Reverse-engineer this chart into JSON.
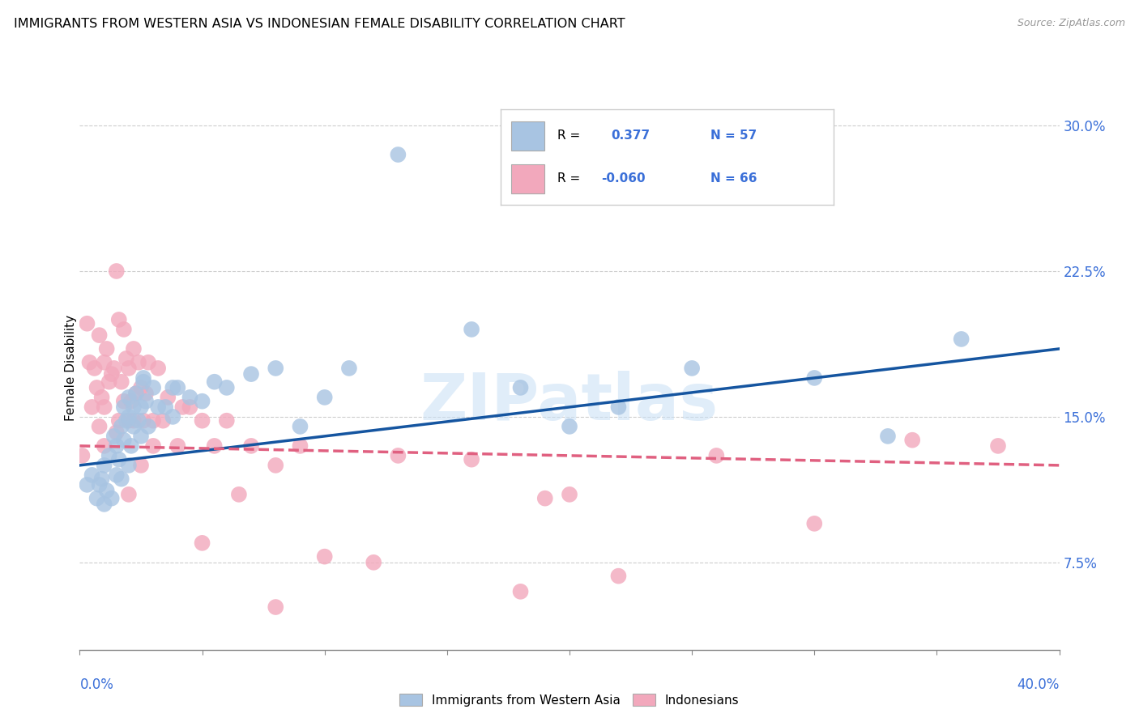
{
  "title": "IMMIGRANTS FROM WESTERN ASIA VS INDONESIAN FEMALE DISABILITY CORRELATION CHART",
  "source": "Source: ZipAtlas.com",
  "ylabel": "Female Disability",
  "ylabel_right_ticks": [
    "7.5%",
    "15.0%",
    "22.5%",
    "30.0%"
  ],
  "ylabel_right_values": [
    0.075,
    0.15,
    0.225,
    0.3
  ],
  "xmin": 0.0,
  "xmax": 0.4,
  "ymin": 0.03,
  "ymax": 0.32,
  "blue_R": "0.377",
  "blue_N": "57",
  "pink_R": "-0.060",
  "pink_N": "66",
  "blue_color": "#a8c4e2",
  "pink_color": "#f2a8bc",
  "blue_line_color": "#1555a0",
  "pink_line_color": "#e06080",
  "watermark": "ZIPatlas",
  "legend_label_blue": "Immigrants from Western Asia",
  "legend_label_pink": "Indonesians",
  "blue_trendline_x": [
    0.0,
    0.4
  ],
  "blue_trendline_y": [
    0.125,
    0.185
  ],
  "pink_trendline_x": [
    0.0,
    0.4
  ],
  "pink_trendline_y": [
    0.135,
    0.125
  ],
  "blue_scatter_x": [
    0.003,
    0.005,
    0.007,
    0.008,
    0.009,
    0.01,
    0.01,
    0.011,
    0.012,
    0.013,
    0.014,
    0.015,
    0.015,
    0.016,
    0.017,
    0.017,
    0.018,
    0.018,
    0.019,
    0.02,
    0.02,
    0.021,
    0.022,
    0.022,
    0.023,
    0.024,
    0.025,
    0.025,
    0.026,
    0.027,
    0.028,
    0.03,
    0.032,
    0.035,
    0.038,
    0.04,
    0.045,
    0.05,
    0.055,
    0.06,
    0.07,
    0.08,
    0.09,
    0.1,
    0.11,
    0.13,
    0.16,
    0.18,
    0.2,
    0.22,
    0.25,
    0.3,
    0.33,
    0.36,
    0.038,
    0.026,
    0.02
  ],
  "blue_scatter_y": [
    0.115,
    0.12,
    0.108,
    0.115,
    0.118,
    0.125,
    0.105,
    0.112,
    0.13,
    0.108,
    0.14,
    0.12,
    0.135,
    0.128,
    0.145,
    0.118,
    0.138,
    0.155,
    0.148,
    0.125,
    0.16,
    0.135,
    0.155,
    0.145,
    0.162,
    0.148,
    0.155,
    0.14,
    0.168,
    0.158,
    0.145,
    0.165,
    0.155,
    0.155,
    0.15,
    0.165,
    0.16,
    0.158,
    0.168,
    0.165,
    0.172,
    0.175,
    0.145,
    0.16,
    0.175,
    0.285,
    0.195,
    0.165,
    0.145,
    0.155,
    0.175,
    0.17,
    0.14,
    0.19,
    0.165,
    0.17,
    0.15
  ],
  "pink_scatter_x": [
    0.001,
    0.003,
    0.004,
    0.005,
    0.006,
    0.007,
    0.008,
    0.008,
    0.009,
    0.01,
    0.01,
    0.011,
    0.012,
    0.013,
    0.014,
    0.015,
    0.015,
    0.016,
    0.016,
    0.017,
    0.018,
    0.018,
    0.019,
    0.02,
    0.02,
    0.021,
    0.022,
    0.022,
    0.023,
    0.024,
    0.025,
    0.026,
    0.027,
    0.028,
    0.03,
    0.032,
    0.034,
    0.036,
    0.04,
    0.042,
    0.045,
    0.05,
    0.055,
    0.06,
    0.065,
    0.07,
    0.08,
    0.09,
    0.1,
    0.13,
    0.16,
    0.19,
    0.22,
    0.26,
    0.3,
    0.34,
    0.375,
    0.01,
    0.02,
    0.03,
    0.05,
    0.025,
    0.18,
    0.2,
    0.12,
    0.08
  ],
  "pink_scatter_y": [
    0.13,
    0.198,
    0.178,
    0.155,
    0.175,
    0.165,
    0.192,
    0.145,
    0.16,
    0.178,
    0.155,
    0.185,
    0.168,
    0.172,
    0.175,
    0.142,
    0.225,
    0.148,
    0.2,
    0.168,
    0.158,
    0.195,
    0.18,
    0.175,
    0.148,
    0.158,
    0.185,
    0.148,
    0.162,
    0.178,
    0.165,
    0.148,
    0.162,
    0.178,
    0.148,
    0.175,
    0.148,
    0.16,
    0.135,
    0.155,
    0.155,
    0.148,
    0.135,
    0.148,
    0.11,
    0.135,
    0.125,
    0.135,
    0.078,
    0.13,
    0.128,
    0.108,
    0.068,
    0.13,
    0.095,
    0.138,
    0.135,
    0.135,
    0.11,
    0.135,
    0.085,
    0.125,
    0.06,
    0.11,
    0.075,
    0.052
  ]
}
